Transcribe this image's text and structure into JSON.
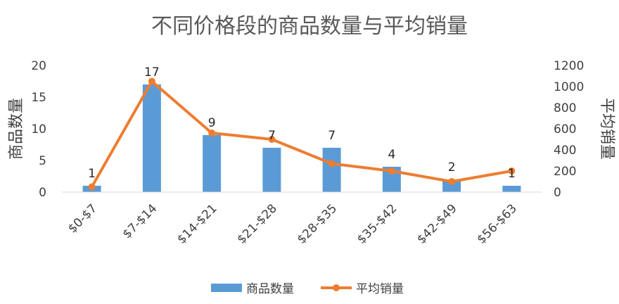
{
  "chart_data": {
    "type": "bar",
    "title": "不同价格段的商品数量与平均销量",
    "categories": [
      "$0-$7",
      "$7-$14",
      "$14-$21",
      "$21-$28",
      "$28-$35",
      "$35-$42",
      "$42-$49",
      "$56-$63"
    ],
    "series": [
      {
        "name": "商品数量",
        "type": "bar",
        "axis": "left",
        "values": [
          1,
          17,
          9,
          7,
          7,
          4,
          2,
          1
        ],
        "data_labels": [
          "1",
          "17",
          "9",
          "7",
          "7",
          "4",
          "2",
          "1"
        ],
        "color": "#5B9BD5"
      },
      {
        "name": "平均销量",
        "type": "line",
        "axis": "right",
        "values": [
          50,
          1050,
          560,
          500,
          270,
          200,
          100,
          200
        ],
        "color": "#ED7D31"
      }
    ],
    "ylabel_left": "商品数量",
    "ylabel_right": "平均销量",
    "ylim_left": [
      0,
      20
    ],
    "yticks_left": [
      "0",
      "5",
      "10",
      "15",
      "20"
    ],
    "ylim_right": [
      0,
      1200
    ],
    "yticks_right": [
      "0",
      "200",
      "400",
      "600",
      "800",
      "1000",
      "1200"
    ],
    "grid": false,
    "legend_position": "bottom"
  }
}
